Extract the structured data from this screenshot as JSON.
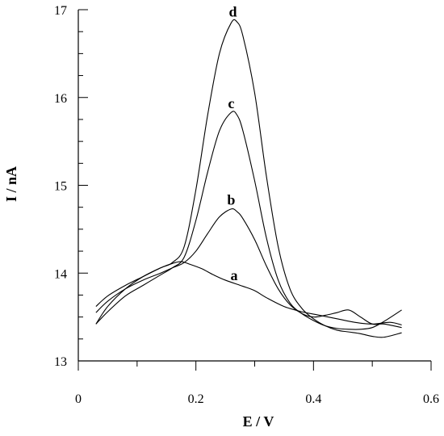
{
  "chart_data": {
    "type": "line",
    "title": "",
    "xlabel": "E / V",
    "ylabel": "I / nA",
    "xlim": [
      0,
      0.6
    ],
    "ylim": [
      13,
      17
    ],
    "x_ticks": [
      {
        "value": 0,
        "label": "0"
      },
      {
        "value": 0.2,
        "label": "0.2"
      },
      {
        "value": 0.4,
        "label": "0.4"
      },
      {
        "value": 0.6,
        "label": "0.6"
      }
    ],
    "y_ticks": [
      {
        "value": 13,
        "label": "13"
      },
      {
        "value": 14,
        "label": "14"
      },
      {
        "value": 15,
        "label": "15"
      },
      {
        "value": 16,
        "label": "16"
      },
      {
        "value": 17,
        "label": "17"
      }
    ],
    "grid": false,
    "series": [
      {
        "name": "a",
        "label_at": [
          0.265,
          13.92
        ],
        "points": [
          [
            0.03,
            13.42
          ],
          [
            0.05,
            13.62
          ],
          [
            0.08,
            13.82
          ],
          [
            0.11,
            13.96
          ],
          [
            0.14,
            14.06
          ],
          [
            0.16,
            14.11
          ],
          [
            0.175,
            14.13
          ],
          [
            0.19,
            14.1
          ],
          [
            0.21,
            14.05
          ],
          [
            0.23,
            13.98
          ],
          [
            0.25,
            13.92
          ],
          [
            0.28,
            13.85
          ],
          [
            0.3,
            13.8
          ],
          [
            0.32,
            13.72
          ],
          [
            0.35,
            13.62
          ],
          [
            0.38,
            13.56
          ],
          [
            0.41,
            13.52
          ],
          [
            0.44,
            13.48
          ],
          [
            0.47,
            13.44
          ],
          [
            0.5,
            13.42
          ],
          [
            0.53,
            13.44
          ],
          [
            0.55,
            13.41
          ]
        ]
      },
      {
        "name": "b",
        "label_at": [
          0.26,
          14.78
        ],
        "points": [
          [
            0.03,
            13.55
          ],
          [
            0.05,
            13.68
          ],
          [
            0.08,
            13.82
          ],
          [
            0.11,
            13.92
          ],
          [
            0.14,
            14.0
          ],
          [
            0.16,
            14.06
          ],
          [
            0.18,
            14.12
          ],
          [
            0.2,
            14.25
          ],
          [
            0.22,
            14.45
          ],
          [
            0.24,
            14.64
          ],
          [
            0.26,
            14.73
          ],
          [
            0.27,
            14.7
          ],
          [
            0.28,
            14.62
          ],
          [
            0.3,
            14.38
          ],
          [
            0.32,
            14.08
          ],
          [
            0.34,
            13.82
          ],
          [
            0.36,
            13.64
          ],
          [
            0.38,
            13.54
          ],
          [
            0.4,
            13.5
          ],
          [
            0.42,
            13.52
          ],
          [
            0.44,
            13.55
          ],
          [
            0.46,
            13.58
          ],
          [
            0.48,
            13.5
          ],
          [
            0.5,
            13.42
          ],
          [
            0.52,
            13.42
          ],
          [
            0.55,
            13.38
          ]
        ]
      },
      {
        "name": "c",
        "label_at": [
          0.26,
          15.88
        ],
        "points": [
          [
            0.03,
            13.42
          ],
          [
            0.05,
            13.56
          ],
          [
            0.08,
            13.74
          ],
          [
            0.11,
            13.86
          ],
          [
            0.14,
            13.98
          ],
          [
            0.16,
            14.06
          ],
          [
            0.18,
            14.18
          ],
          [
            0.2,
            14.6
          ],
          [
            0.22,
            15.15
          ],
          [
            0.24,
            15.62
          ],
          [
            0.26,
            15.83
          ],
          [
            0.27,
            15.8
          ],
          [
            0.28,
            15.62
          ],
          [
            0.3,
            15.05
          ],
          [
            0.32,
            14.4
          ],
          [
            0.34,
            13.92
          ],
          [
            0.36,
            13.66
          ],
          [
            0.38,
            13.54
          ],
          [
            0.4,
            13.46
          ],
          [
            0.42,
            13.4
          ],
          [
            0.44,
            13.37
          ],
          [
            0.46,
            13.36
          ],
          [
            0.48,
            13.36
          ],
          [
            0.5,
            13.38
          ],
          [
            0.52,
            13.45
          ],
          [
            0.55,
            13.58
          ]
        ]
      },
      {
        "name": "d",
        "label_at": [
          0.263,
          16.92
        ],
        "points": [
          [
            0.03,
            13.62
          ],
          [
            0.05,
            13.74
          ],
          [
            0.08,
            13.86
          ],
          [
            0.11,
            13.96
          ],
          [
            0.14,
            14.06
          ],
          [
            0.16,
            14.12
          ],
          [
            0.18,
            14.3
          ],
          [
            0.2,
            14.95
          ],
          [
            0.22,
            15.8
          ],
          [
            0.24,
            16.5
          ],
          [
            0.26,
            16.85
          ],
          [
            0.27,
            16.86
          ],
          [
            0.28,
            16.7
          ],
          [
            0.3,
            16.05
          ],
          [
            0.32,
            15.1
          ],
          [
            0.34,
            14.3
          ],
          [
            0.36,
            13.82
          ],
          [
            0.38,
            13.6
          ],
          [
            0.4,
            13.48
          ],
          [
            0.42,
            13.4
          ],
          [
            0.44,
            13.35
          ],
          [
            0.46,
            13.33
          ],
          [
            0.48,
            13.31
          ],
          [
            0.5,
            13.28
          ],
          [
            0.52,
            13.27
          ],
          [
            0.55,
            13.32
          ]
        ]
      }
    ]
  }
}
